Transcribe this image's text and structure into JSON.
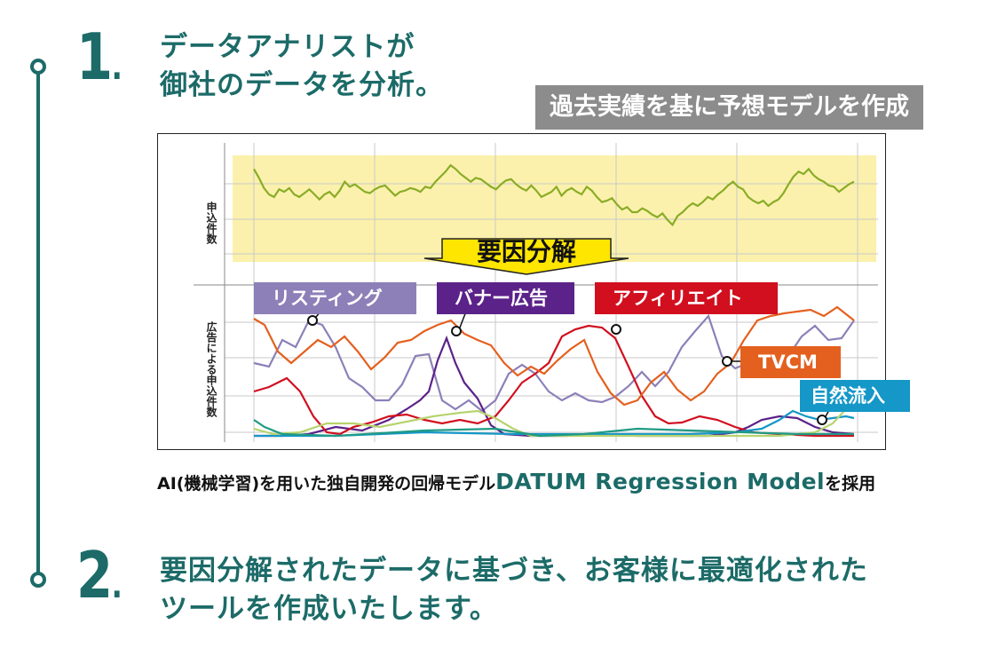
{
  "step1": {
    "number": "1",
    "title_line1": "データアナリストが",
    "title_line2": "御社のデータを分析。"
  },
  "badge": "過去実績を基に予想モデルを作成",
  "chart_data": {
    "type": "line",
    "panels": [
      {
        "ylabel": "申込件数",
        "series": [
          {
            "color": "#8aac28",
            "values": [
              62,
              55,
              47,
              42,
              40,
              46,
              44,
              47,
              42,
              40,
              43,
              46,
              42,
              38,
              42,
              44,
              40,
              45,
              52,
              48,
              50,
              47,
              44,
              43,
              46,
              48,
              49,
              45,
              41,
              44,
              45,
              47,
              46,
              44,
              48,
              47,
              52,
              56,
              60,
              65,
              62,
              58,
              55,
              52,
              55,
              54,
              51,
              48,
              46,
              50,
              53,
              54,
              50,
              47,
              45,
              49,
              45,
              40,
              42,
              44,
              48,
              41,
              45,
              47,
              44,
              42,
              48,
              45,
              40,
              36,
              37,
              39,
              34,
              30,
              32,
              28,
              28,
              31,
              29,
              26,
              24,
              27,
              22,
              18,
              25,
              28,
              32,
              35,
              33,
              36,
              40,
              38,
              42,
              45,
              49,
              52,
              48,
              46,
              40,
              37,
              35,
              37,
              33,
              36,
              38,
              43,
              50,
              56,
              60,
              58,
              62,
              57,
              54,
              52,
              49,
              48,
              44,
              47,
              50,
              52
            ]
          }
        ]
      },
      {
        "ylabel": "広告による申込件数",
        "series": [
          {
            "name": "リスティング",
            "color": "#8d80b8"
          },
          {
            "name": "バナー広告",
            "color": "#5b2289"
          },
          {
            "name": "アフィリエイト",
            "color": "#d10f1f"
          },
          {
            "name": "TVCM",
            "color": "#e4601e"
          },
          {
            "name": "自然流入",
            "color": "#1597c7"
          },
          {
            "name": "",
            "color": "#b7d36e"
          },
          {
            "name": "",
            "color": "#1f9a84"
          }
        ]
      }
    ],
    "annotation": "要因分解",
    "grid": true
  },
  "labels": {
    "listing": {
      "text": "リスティング",
      "color": "#8d80b8"
    },
    "banner": {
      "text": "バナー広告",
      "color": "#5b2289"
    },
    "affiliate": {
      "text": "アフィリエイト",
      "color": "#d10f1f"
    },
    "tvcm": {
      "text": "TVCM",
      "color": "#e4601e"
    },
    "organic": {
      "text": "自然流入",
      "color": "#1597c7"
    }
  },
  "caption": {
    "prefix": "AI(機械学習)を用いた独自開発の回帰モデル",
    "model_name": "DATUM Regression Model",
    "suffix": "を採用"
  },
  "step2": {
    "number": "2",
    "title_line1": "要因分解されたデータに基づき、お客様に最適化された",
    "title_line2": "ツールを作成いたします。"
  },
  "colors": {
    "accent": "#1c6b68",
    "highlight": "#fbf1ac",
    "banner_yellow": "#ffe600"
  }
}
